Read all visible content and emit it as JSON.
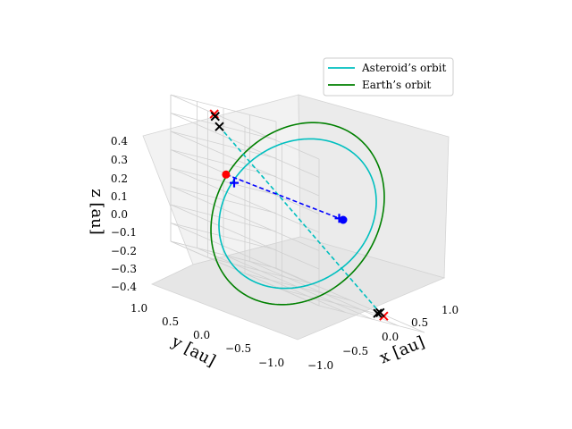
{
  "chart_data": {
    "type": "line",
    "projection": "3d",
    "xlabel": "x [au]",
    "ylabel": "y [au]",
    "zlabel": "z [au]",
    "x_ticks": [
      "−1.0",
      "−0.5",
      "0.0",
      "0.5",
      "1.0"
    ],
    "y_ticks": [
      "1.0",
      "0.5",
      "0.0",
      "−0.5",
      "−1.0"
    ],
    "z_ticks": [
      "0.4",
      "0.3",
      "0.2",
      "0.1",
      "0.0",
      "−0.1",
      "−0.2",
      "−0.3",
      "−0.4"
    ],
    "xlim": [
      -1.0,
      1.0
    ],
    "ylim": [
      -1.0,
      1.0
    ],
    "zlim": [
      -0.4,
      0.4
    ],
    "grid": true,
    "legend_position": "top-right",
    "series": [
      {
        "name": "Asteroid’s orbit",
        "style": "solid",
        "color": "#00bfbf",
        "semi_axes": [
          0.9,
          0.9
        ],
        "normal": [
          0.0,
          0.55,
          1.0
        ]
      },
      {
        "name": "Earth’s orbit",
        "style": "solid",
        "color": "#008000",
        "semi_axes": [
          1.0,
          1.0
        ],
        "normal": [
          0.0,
          0.62,
          1.0
        ]
      }
    ],
    "connectors": [
      {
        "color": "#00bfbf",
        "style": "dashed",
        "from": [
          -0.5,
          0.78,
          0.33
        ],
        "to": [
          0.48,
          -0.84,
          -0.38
        ]
      },
      {
        "color": "#0000ff",
        "style": "dashed",
        "from": [
          -0.88,
          0.12,
          0.05
        ],
        "to": [
          0.7,
          0.12,
          0.08
        ]
      }
    ],
    "markers": [
      {
        "shape": "x",
        "color": "#ff0000",
        "position": [
          -0.52,
          0.85,
          0.39
        ]
      },
      {
        "shape": "x",
        "color": "#000000",
        "position": [
          -0.5,
          0.86,
          0.38
        ]
      },
      {
        "shape": "x",
        "color": "#000000",
        "position": [
          -0.5,
          0.78,
          0.33
        ]
      },
      {
        "shape": "x",
        "color": "#ff0000",
        "position": [
          0.55,
          -0.86,
          -0.4
        ]
      },
      {
        "shape": "x",
        "color": "#000000",
        "position": [
          0.5,
          -0.86,
          -0.39
        ]
      },
      {
        "shape": "x",
        "color": "#000000",
        "position": [
          0.46,
          -0.87,
          -0.4
        ]
      },
      {
        "shape": "dot",
        "color": "#0000ff",
        "position": [
          0.7,
          0.12,
          0.08
        ]
      },
      {
        "shape": "plus",
        "color": "#0000ff",
        "position": [
          0.66,
          0.14,
          0.08
        ]
      },
      {
        "shape": "dot",
        "color": "#ff0000",
        "position": [
          -0.88,
          0.12,
          0.05
        ]
      },
      {
        "shape": "plus",
        "color": "#0000ff",
        "position": [
          -0.82,
          0.05,
          0.02
        ]
      }
    ]
  }
}
